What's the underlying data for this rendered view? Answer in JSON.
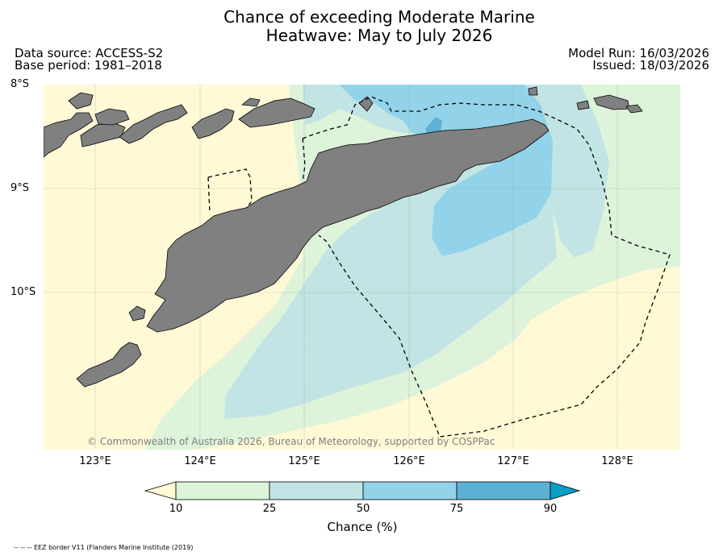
{
  "title_line1": "Chance of exceeding Moderate Marine",
  "title_line2": "Heatwave: May to July 2026",
  "data_source": "Data source: ACCESS-S2",
  "base_period": "Base period: 1981–2018",
  "model_run": "Model Run: 16/03/2026",
  "issued": "Issued: 18/03/2026",
  "lat_labels": [
    "8°S",
    "9°S",
    "10°S"
  ],
  "lon_labels": [
    "123°E",
    "124°E",
    "125°E",
    "126°E",
    "127°E",
    "128°E"
  ],
  "copyright": "© Commonwealth of Australia 2026, Bureau of Meteorology, supported by COSPPac",
  "colorbar": {
    "label": "Chance (%)",
    "ticks": [
      "10",
      "25",
      "50",
      "75",
      "90"
    ],
    "colors": [
      "#fff9d6",
      "#ddf3da",
      "#c2e4e4",
      "#93d3ea",
      "#5eb1d5",
      "#0a9dc6"
    ]
  },
  "footnote": "-- -- -- EEZ border V11 (Flanders Marine Institute (2019)",
  "land_color": "#808080"
}
